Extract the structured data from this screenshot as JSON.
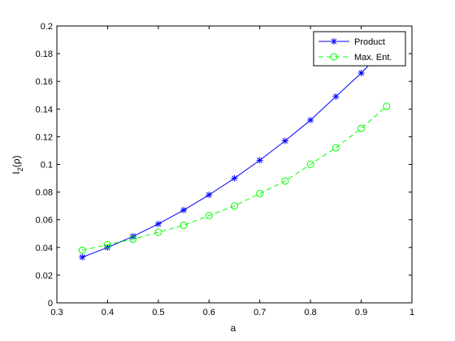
{
  "chart_data": {
    "type": "line",
    "xlabel": "a",
    "ylabel_main": "I",
    "ylabel_sub": "2",
    "ylabel_rest": "(ρ)",
    "xlim": [
      0.3,
      1.0
    ],
    "ylim": [
      0,
      0.2
    ],
    "xticks": [
      "0.3",
      "0.4",
      "0.5",
      "0.6",
      "0.7",
      "0.8",
      "0.9",
      "1"
    ],
    "yticks": [
      "0",
      "0.02",
      "0.04",
      "0.06",
      "0.08",
      "0.1",
      "0.12",
      "0.14",
      "0.16",
      "0.18",
      "0.2"
    ],
    "grid": false,
    "legend_position": "top-right",
    "series": [
      {
        "name": "Product",
        "color": "#0000ff",
        "line_style": "solid",
        "marker": "asterisk",
        "x": [
          0.35,
          0.4,
          0.45,
          0.5,
          0.55,
          0.6,
          0.65,
          0.7,
          0.75,
          0.8,
          0.85,
          0.9,
          0.95
        ],
        "y": [
          0.033,
          0.04,
          0.048,
          0.057,
          0.067,
          0.078,
          0.09,
          0.103,
          0.117,
          0.132,
          0.149,
          0.166,
          0.185
        ]
      },
      {
        "name": "Max. Ent.",
        "color": "#00ff00",
        "line_style": "dashed",
        "marker": "circle",
        "x": [
          0.35,
          0.4,
          0.45,
          0.5,
          0.55,
          0.6,
          0.65,
          0.7,
          0.75,
          0.8,
          0.85,
          0.9,
          0.95
        ],
        "y": [
          0.038,
          0.042,
          0.046,
          0.051,
          0.056,
          0.063,
          0.07,
          0.079,
          0.088,
          0.1,
          0.112,
          0.126,
          0.142
        ]
      }
    ]
  }
}
